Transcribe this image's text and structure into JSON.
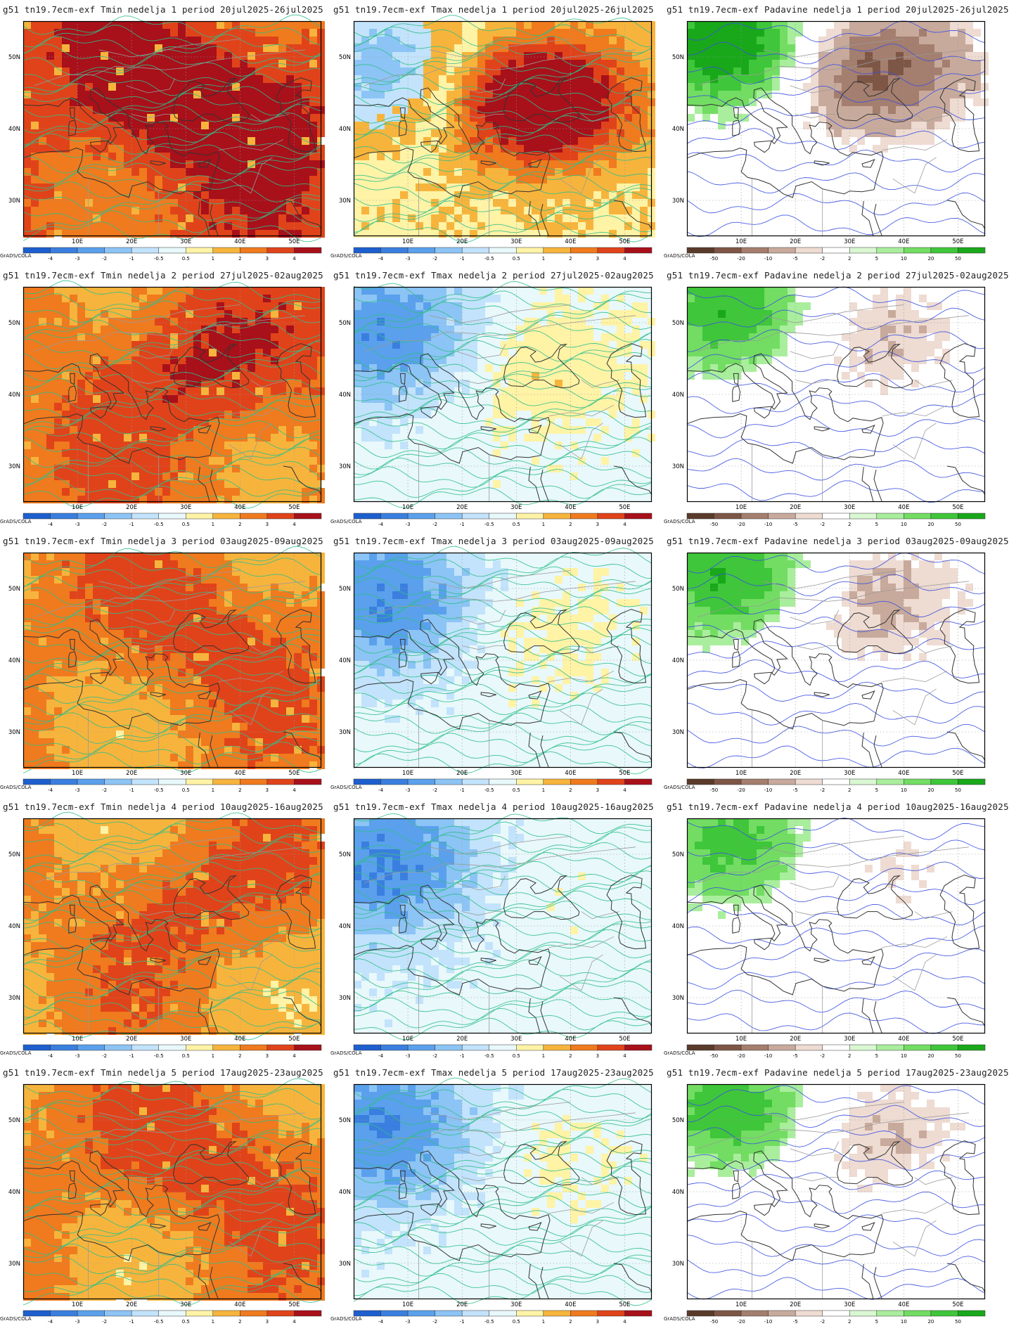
{
  "figure": {
    "credit": "GrADS/COLA",
    "lat_labels": [
      "50N",
      "40N",
      "30N"
    ],
    "lon_labels": [
      "10E",
      "20E",
      "30E",
      "40E",
      "50E"
    ],
    "panels": [
      {
        "title": "g51  tn19.7ecm-exf  Tmin  nedelja 1 period 20jul2025-26jul2025",
        "variable": "Tmin",
        "week": 1,
        "scale": "temp",
        "intensity": 0.95
      },
      {
        "title": "g51  tn19.7ecm-exf  Tmax  nedelja 1 period 20jul2025-26jul2025",
        "variable": "Tmax",
        "week": 1,
        "scale": "temp",
        "intensity": 0.65
      },
      {
        "title": "g51  tn19.7ecm-exf  Padavine  nedelja 1 period 20jul2025-26jul2025",
        "variable": "Padavine",
        "week": 1,
        "scale": "precip",
        "intensity": 0.7
      },
      {
        "title": "g51  tn19.7ecm-exf  Tmin  nedelja 2 period 27jul2025-02aug2025",
        "variable": "Tmin",
        "week": 2,
        "scale": "temp",
        "intensity": 0.7
      },
      {
        "title": "g51  tn19.7ecm-exf  Tmax  nedelja 2 period 27jul2025-02aug2025",
        "variable": "Tmax",
        "week": 2,
        "scale": "temp",
        "intensity": 0.15
      },
      {
        "title": "g51  tn19.7ecm-exf  Padavine  nedelja 2 period 27jul2025-02aug2025",
        "variable": "Padavine",
        "week": 2,
        "scale": "precip",
        "intensity": 0.3
      },
      {
        "title": "g51  tn19.7ecm-exf  Tmin  nedelja 3 period 03aug2025-09aug2025",
        "variable": "Tmin",
        "week": 3,
        "scale": "temp",
        "intensity": 0.6
      },
      {
        "title": "g51  tn19.7ecm-exf  Tmax  nedelja 3 period 03aug2025-09aug2025",
        "variable": "Tmax",
        "week": 3,
        "scale": "temp",
        "intensity": 0.1
      },
      {
        "title": "g51  tn19.7ecm-exf  Padavine  nedelja 3 period 03aug2025-09aug2025",
        "variable": "Padavine",
        "week": 3,
        "scale": "precip",
        "intensity": 0.35
      },
      {
        "title": "g51  tn19.7ecm-exf  Tmin  nedelja 4 period 10aug2025-16aug2025",
        "variable": "Tmin",
        "week": 4,
        "scale": "temp",
        "intensity": 0.55
      },
      {
        "title": "g51  tn19.7ecm-exf  Tmax  nedelja 4 period 10aug2025-16aug2025",
        "variable": "Tmax",
        "week": 4,
        "scale": "temp",
        "intensity": 0.05
      },
      {
        "title": "g51  tn19.7ecm-exf  Padavine  nedelja 4 period 10aug2025-16aug2025",
        "variable": "Padavine",
        "week": 4,
        "scale": "precip",
        "intensity": 0.2
      },
      {
        "title": "g51  tn19.7ecm-exf  Tmin  nedelja 5 period 17aug2025-23aug2025",
        "variable": "Tmin",
        "week": 5,
        "scale": "temp",
        "intensity": 0.6
      },
      {
        "title": "g51  tn19.7ecm-exf  Tmax  nedelja 5 period 17aug2025-23aug2025",
        "variable": "Tmax",
        "week": 5,
        "scale": "temp",
        "intensity": 0.08
      },
      {
        "title": "g51  tn19.7ecm-exf  Padavine  nedelja 5 period 17aug2025-23aug2025",
        "variable": "Padavine",
        "week": 5,
        "scale": "precip",
        "intensity": 0.3
      }
    ]
  },
  "colorbars": {
    "temp": {
      "labels": [
        "-4",
        "-3",
        "-2",
        "-1",
        "-0.5",
        "0.5",
        "1",
        "2",
        "3",
        "4"
      ],
      "colors": [
        "#1e5fcf",
        "#3a7fdf",
        "#5aa0ec",
        "#8cc4f5",
        "#c2e3fb",
        "#e8f8fb",
        "#fff3a6",
        "#f7b43c",
        "#f07a1e",
        "#e0431a",
        "#a8101a"
      ]
    },
    "precip": {
      "labels": [
        "-50",
        "-20",
        "-10",
        "-5",
        "-2",
        "2",
        "5",
        "10",
        "20",
        "50"
      ],
      "colors": [
        "#5a3a2a",
        "#7e5646",
        "#a47e6e",
        "#c8aa9c",
        "#eedbd2",
        "#ffffff",
        "#d9f8d2",
        "#a9ee9c",
        "#72dd62",
        "#3fc63a",
        "#19a81a"
      ]
    }
  }
}
